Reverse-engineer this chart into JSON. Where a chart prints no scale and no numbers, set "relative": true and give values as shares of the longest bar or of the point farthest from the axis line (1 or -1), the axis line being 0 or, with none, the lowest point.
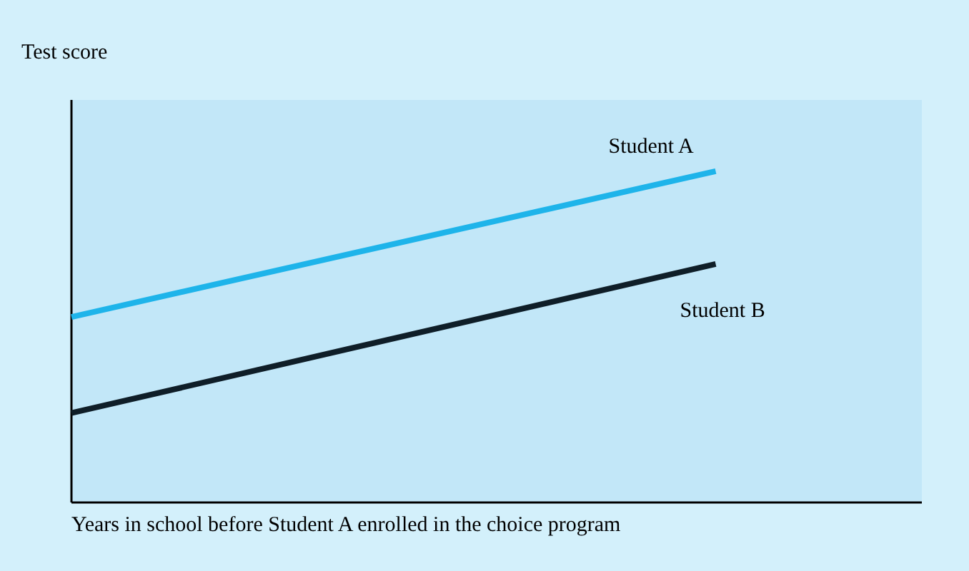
{
  "chart_data": {
    "type": "line",
    "relative": true,
    "xlabel": "Years in school before Student A enrolled in the choice program",
    "ylabel": "Test score",
    "categories": [
      null,
      null
    ],
    "series": [
      {
        "name": "Student A",
        "color": "#1eb4ea",
        "values": [
          0.56,
          1
        ]
      },
      {
        "name": "Student B",
        "color": "#0f1e28",
        "values": [
          0.27,
          0.72
        ]
      }
    ]
  }
}
